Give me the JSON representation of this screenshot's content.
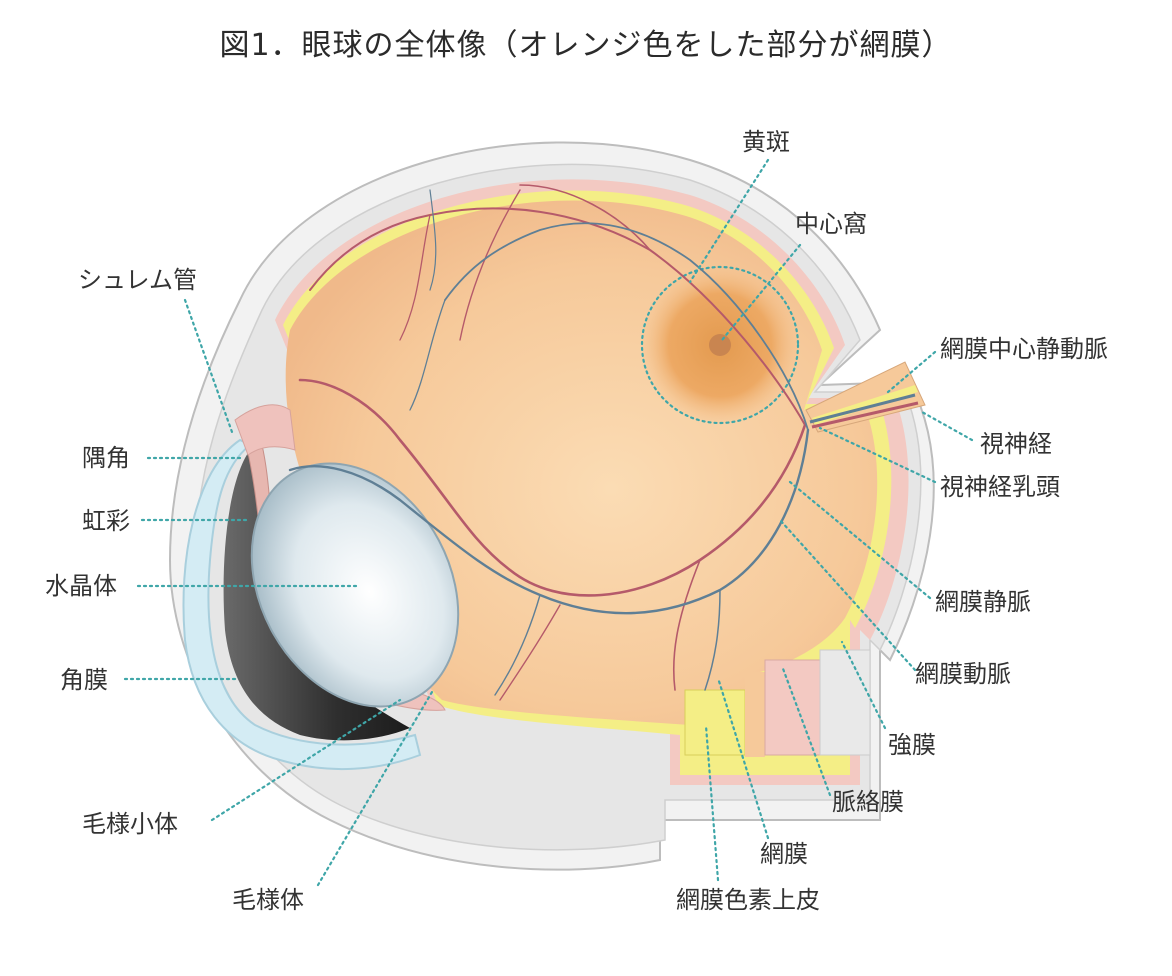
{
  "figure": {
    "title": "図1．眼球の全体像（オレンジ色をした部分が網膜）"
  },
  "labels": {
    "macula": "黄斑",
    "fovea": "中心窩",
    "schlemm_canal": "シュレム管",
    "central_retinal_vessels": "網膜中心静動脈",
    "optic_nerve": "視神経",
    "optic_disc": "視神経乳頭",
    "chamber_angle": "隅角",
    "iris": "虹彩",
    "lens": "水晶体",
    "cornea": "角膜",
    "retinal_vein": "網膜静脈",
    "retinal_artery": "網膜動脈",
    "sclera": "強膜",
    "choroid": "脈絡膜",
    "ciliary_zonule": "毛様小体",
    "ciliary_body": "毛様体",
    "retina": "網膜",
    "rpe": "網膜色素上皮"
  },
  "colors": {
    "retina": "#f6c99a",
    "macula": "#eaa258",
    "fovea": "#c98550",
    "sclera": "#f1f1f1",
    "choroid": "#f3c9c2",
    "rpe": "#f4ee86",
    "cornea": "#d4ecf4",
    "lens": "#dde9ef",
    "iris": "#3a3a3a",
    "artery": "#b55a6a",
    "vein": "#5f7f95",
    "leader": "#3fa6a8"
  }
}
